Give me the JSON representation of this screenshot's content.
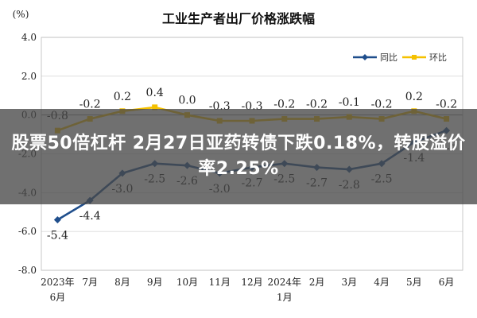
{
  "chart_data": {
    "type": "line",
    "title": "工业生产者出厂价格涨跌幅",
    "unit_label": "(%)",
    "categories": [
      [
        "2023年",
        "6月"
      ],
      [
        "7月"
      ],
      [
        "8月"
      ],
      [
        "9月"
      ],
      [
        "10月"
      ],
      [
        "11月"
      ],
      [
        "12月"
      ],
      [
        "2024年",
        "1月"
      ],
      [
        "2月"
      ],
      [
        "3月"
      ],
      [
        "4月"
      ],
      [
        "5月"
      ],
      [
        "6月"
      ]
    ],
    "yticks": [
      "4.0",
      "2.0",
      "0.0",
      "-2.0",
      "-4.0",
      "-6.0",
      "-8.0"
    ],
    "ylim": [
      -8,
      4
    ],
    "grid": "horizontal",
    "legend_position": "top-right",
    "series": [
      {
        "name": "同比",
        "color": "#1f4e8c",
        "marker": "diamond",
        "values": [
          -5.4,
          -4.4,
          -3.0,
          -2.5,
          -2.6,
          -3.0,
          -2.7,
          -2.5,
          -2.7,
          -2.8,
          -2.5,
          -1.4,
          -0.8
        ],
        "labels": [
          "-5.4",
          "-4.4",
          "-3.0",
          "-2.5",
          "-2.6",
          "-3.0",
          "-2.7",
          "-2.5",
          "-2.7",
          "-2.8",
          "-2.5",
          "-1.4",
          "-0.8"
        ]
      },
      {
        "name": "环比",
        "color": "#f5c100",
        "marker": "square",
        "values": [
          -0.8,
          -0.2,
          0.2,
          0.4,
          0.0,
          -0.3,
          -0.3,
          -0.2,
          -0.2,
          -0.1,
          -0.2,
          0.2,
          -0.2
        ],
        "labels": [
          "-0.8",
          "-0.2",
          "0.2",
          "0.4",
          "0.0",
          "-0.3",
          "-0.3",
          "-0.2",
          "-0.2",
          "-0.1",
          "-0.2",
          "0.2",
          "-0.2"
        ]
      }
    ]
  },
  "overlay": {
    "headline": "股票50倍杠杆 2月27日亚药转债下跌0.18%，转股溢价率2.25%"
  }
}
